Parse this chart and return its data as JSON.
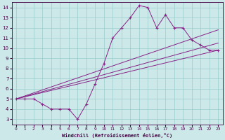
{
  "xlabel": "Windchill (Refroidissement éolien,°C)",
  "background_color": "#cce8e8",
  "grid_color": "#99cccc",
  "line_color": "#882288",
  "spine_color": "#440044",
  "xlim": [
    -0.5,
    23.5
  ],
  "ylim": [
    2.5,
    14.5
  ],
  "xticks": [
    0,
    1,
    2,
    3,
    4,
    5,
    6,
    7,
    8,
    9,
    10,
    11,
    12,
    13,
    14,
    15,
    16,
    17,
    18,
    19,
    20,
    21,
    22,
    23
  ],
  "yticks": [
    3,
    4,
    5,
    6,
    7,
    8,
    9,
    10,
    11,
    12,
    13,
    14
  ],
  "data_line": {
    "x": [
      0,
      1,
      2,
      3,
      4,
      5,
      6,
      7,
      8,
      9,
      10,
      11,
      12,
      13,
      14,
      15,
      16,
      17,
      18,
      19,
      20,
      21,
      22,
      23
    ],
    "y": [
      5.0,
      5.0,
      5.0,
      4.5,
      4.0,
      4.0,
      4.0,
      3.0,
      4.5,
      6.5,
      8.5,
      11.0,
      12.0,
      13.0,
      14.2,
      14.0,
      12.0,
      13.3,
      12.0,
      12.0,
      10.8,
      10.3,
      9.8,
      9.8
    ]
  },
  "reg_lines": [
    {
      "x": [
        0,
        23
      ],
      "y": [
        5.0,
        9.8
      ]
    },
    {
      "x": [
        0,
        23
      ],
      "y": [
        5.0,
        10.5
      ]
    },
    {
      "x": [
        0,
        23
      ],
      "y": [
        5.0,
        11.8
      ]
    }
  ]
}
